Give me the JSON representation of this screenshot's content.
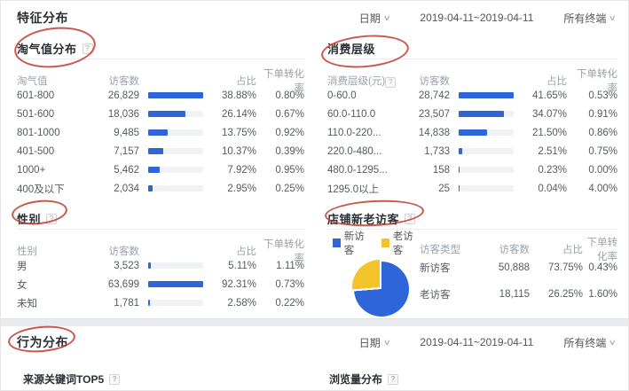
{
  "colors": {
    "blue": "#2E66D9",
    "yellow": "#F3C32C",
    "red": "#C23A2B",
    "track": "#F1F2F5"
  },
  "feature_panel": {
    "title": "特征分布",
    "date_label": "日期",
    "date_range": "2019-04-11~2019-04-11",
    "terminal": "所有终端"
  },
  "behavior_panel": {
    "title": "行为分布",
    "date_label": "日期",
    "date_range": "2019-04-11~2019-04-11",
    "terminal": "所有终端",
    "subsections": {
      "left": "来源关键词TOP5",
      "right": "浏览量分布"
    }
  },
  "help_glyph": "?",
  "tables": {
    "taoqi": {
      "title": "淘气值分布",
      "columns": [
        "淘气值",
        "访客数",
        "占比",
        "下单转化率"
      ],
      "rows": [
        [
          "601-800",
          "26,829",
          "38.88%",
          "0.80%"
        ],
        [
          "501-600",
          "18,036",
          "26.14%",
          "0.67%"
        ],
        [
          "801-1000",
          "9,485",
          "13.75%",
          "0.92%"
        ],
        [
          "401-500",
          "7,157",
          "10.37%",
          "0.39%"
        ],
        [
          "1000+",
          "5,462",
          "7.92%",
          "0.95%"
        ],
        [
          "400及以下",
          "2,034",
          "2.95%",
          "0.25%"
        ]
      ]
    },
    "consumption": {
      "title": "消费层级",
      "columns": [
        "消费层级(元)",
        "访客数",
        "占比",
        "下单转化率"
      ],
      "header_help": true,
      "rows": [
        [
          "0-60.0",
          "28,742",
          "41.65%",
          "0.53%"
        ],
        [
          "60.0-110.0",
          "23,507",
          "34.07%",
          "0.91%"
        ],
        [
          "110.0-220...",
          "14,838",
          "21.50%",
          "0.86%"
        ],
        [
          "220.0-480...",
          "1,733",
          "2.51%",
          "0.75%"
        ],
        [
          "480.0-1295...",
          "158",
          "0.23%",
          "0.00%"
        ],
        [
          "1295.0以上",
          "25",
          "0.04%",
          "4.00%"
        ]
      ]
    },
    "gender": {
      "title": "性别",
      "columns": [
        "性别",
        "访客数",
        "占比",
        "下单转化率"
      ],
      "rows": [
        [
          "男",
          "3,523",
          "5.11%",
          "1.11%"
        ],
        [
          "女",
          "63,699",
          "92.31%",
          "0.73%"
        ],
        [
          "未知",
          "1,781",
          "2.58%",
          "0.22%"
        ]
      ]
    },
    "visitors": {
      "title": "店铺新老访客",
      "columns": [
        "访客类型",
        "访客数",
        "占比",
        "下单转化率"
      ],
      "legend": [
        {
          "label": "新访客",
          "color": "#2E66D9"
        },
        {
          "label": "老访客",
          "color": "#F3C32C"
        }
      ],
      "rows": [
        [
          "新访客",
          "50,888",
          "73.75%",
          "0.43%"
        ],
        [
          "老访客",
          "18,115",
          "26.25%",
          "1.60%"
        ]
      ]
    }
  },
  "chart_data": {
    "type": "pie",
    "labels": [
      "新访客",
      "老访客"
    ],
    "values": [
      73.75,
      26.25
    ],
    "colors": [
      "#2E66D9",
      "#F3C32C"
    ],
    "legend_position": "top",
    "title": "店铺新老访客"
  }
}
